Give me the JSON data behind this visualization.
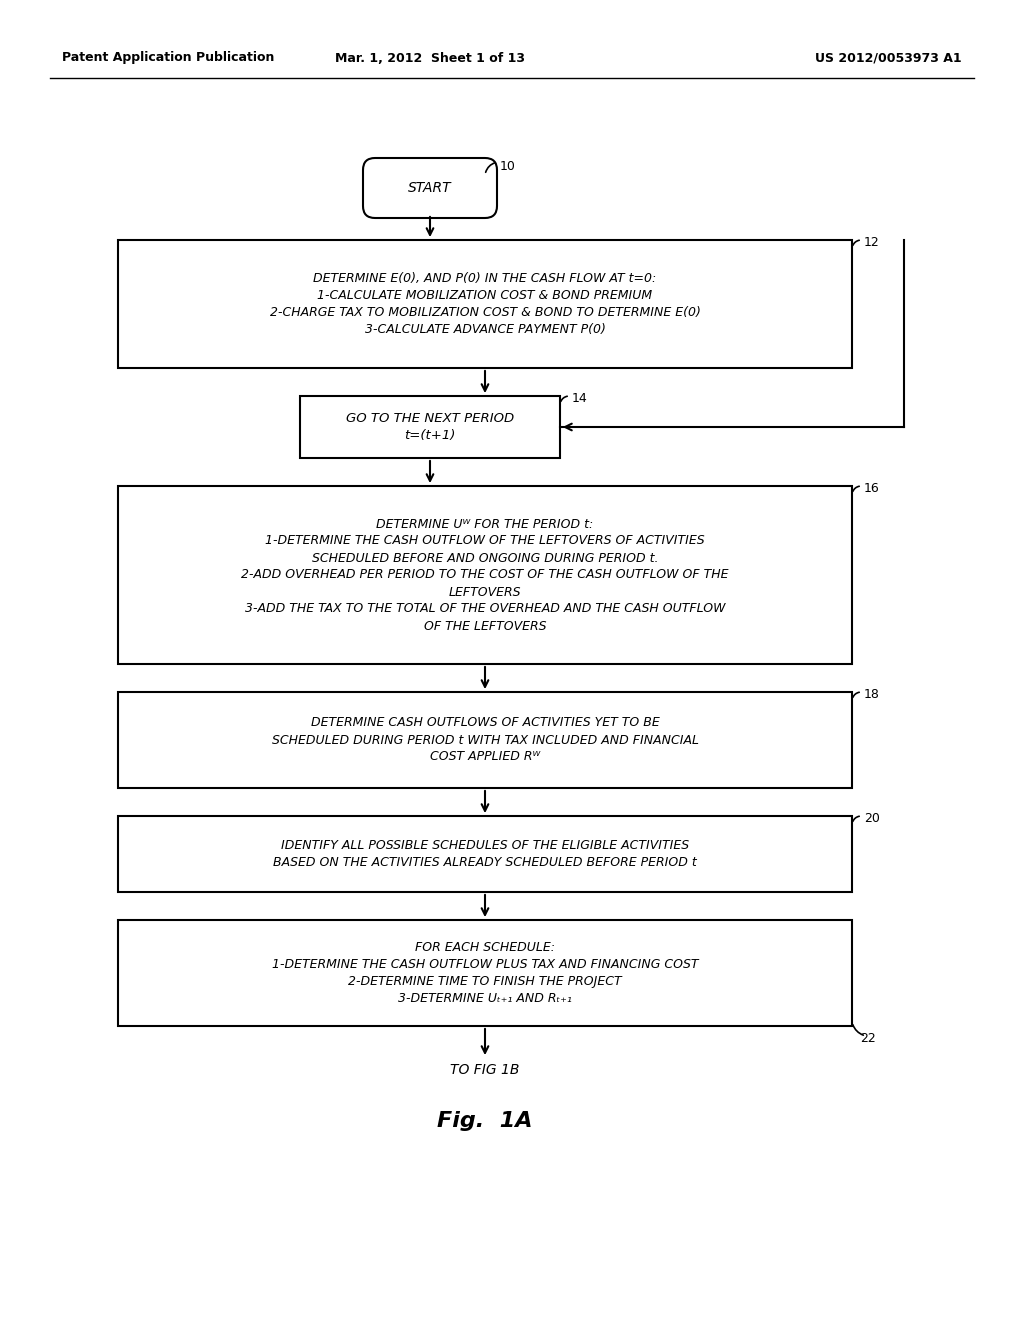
{
  "bg_color": "#ffffff",
  "header_left": "Patent Application Publication",
  "header_mid": "Mar. 1, 2012  Sheet 1 of 13",
  "header_right": "US 2012/0053973 A1",
  "fig_label": "Fig.  1A",
  "start_label": "START",
  "start_ref": "10",
  "box1_ref": "12",
  "box1_lines": "DETERMINE E(0), AND P(0) IN THE CASH FLOW AT t=0:\n1-CALCULATE MOBILIZATION COST & BOND PREMIUM\n2-CHARGE TAX TO MOBILIZATION COST & BOND TO DETERMINE E(0)\n3-CALCULATE ADVANCE PAYMENT P(0)",
  "box2_ref": "14",
  "box2_lines": "GO TO THE NEXT PERIOD\nt=(t+1)",
  "box3_ref": "16",
  "box3_lines": "DETERMINE Uᵂ FOR THE PERIOD t:\n1-DETERMINE THE CASH OUTFLOW OF THE LEFTOVERS OF ACTIVITIES\nSCHEDULED BEFORE AND ONGOING DURING PERIOD t.\n2-ADD OVERHEAD PER PERIOD TO THE COST OF THE CASH OUTFLOW OF THE\nLEFTOVERS\n3-ADD THE TAX TO THE TOTAL OF THE OVERHEAD AND THE CASH OUTFLOW\nOF THE LEFTOVERS",
  "box4_ref": "18",
  "box4_lines": "DETERMINE CASH OUTFLOWS OF ACTIVITIES YET TO BE\nSCHEDULED DURING PERIOD t WITH TAX INCLUDED AND FINANCIAL\nCOST APPLIED Rᵂ",
  "box5_ref": "20",
  "box5_lines": "IDENTIFY ALL POSSIBLE SCHEDULES OF THE ELIGIBLE ACTIVITIES\nBASED ON THE ACTIVITIES ALREADY SCHEDULED BEFORE PERIOD t",
  "box6_lines": "FOR EACH SCHEDULE:\n1-DETERMINE THE CASH OUTFLOW PLUS TAX AND FINANCING COST\n2-DETERMINE TIME TO FINISH THE PROJECT\n3-DETERMINE Uₜ₊₁ AND Rₜ₊₁",
  "bottom_ref": "22",
  "bottom_label": "TO FIG 1B"
}
